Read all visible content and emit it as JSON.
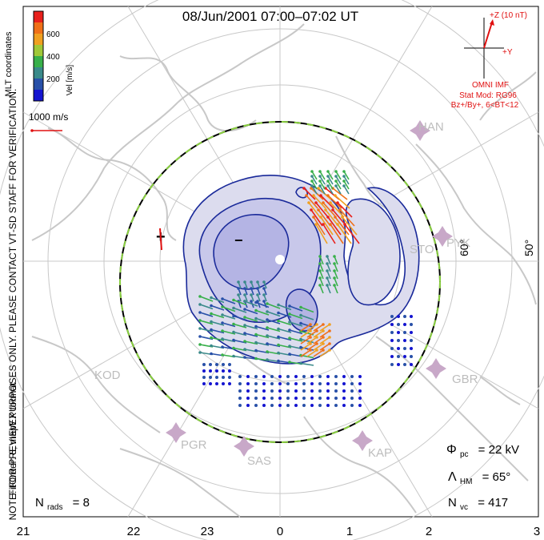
{
  "title": "08/Jun/2001 07:00–07:02 UT",
  "colorbar": {
    "label": "Vel [m/s]",
    "ticks": [
      "600",
      "400",
      "200"
    ],
    "colors": [
      "#e8201c",
      "#f07018",
      "#f0a020",
      "#a0c838",
      "#38b04a",
      "#3a8a8a",
      "#2850a8",
      "#1414d0"
    ]
  },
  "left_side_text": {
    "coordinates": "MLT coordinates",
    "notice": "NOTE: FOR PREVIEW PURPOSES ONLY. PLEASE CONTACT VT-SD STAFF FOR VERIFICATION.",
    "fit_order": "FitOrder: 8, mapEX format"
  },
  "scale_vector": {
    "label": "1000 m/s"
  },
  "imf": {
    "bz_label": "+Z (10 nT)",
    "by_label": "+Y",
    "source": "OMNI IMF",
    "model": "Stat Mod: RG96",
    "condition": "Bz+/By+, 6<BT<12",
    "color": "#e01010"
  },
  "latitude_labels": [
    "60°",
    "50°"
  ],
  "mlt_labels": [
    "21",
    "22",
    "23",
    "0",
    "1",
    "2",
    "3"
  ],
  "stations": [
    "HAN",
    "STO",
    "PYK",
    "KOD",
    "GBR",
    "PGR",
    "SAS",
    "KAP"
  ],
  "stats": {
    "phi_pc_label": "Φ",
    "phi_pc_sub": "pc",
    "phi_pc_value": "= 22 kV",
    "lambda_label": "Λ",
    "lambda_sub": "HM",
    "lambda_value": "= 65°",
    "nvc_label": "N",
    "nvc_sub": "vc",
    "nvc_value": "= 417",
    "nrads_label": "N",
    "nrads_sub": "rads",
    "nrads_value": "= 8"
  },
  "contour_signs": [
    "−",
    "+"
  ],
  "colors": {
    "coast": "#c8c8c8",
    "grid": "#c8c8c8",
    "contour": "#1a2a9a",
    "convection_fill": "#d8d8ec",
    "convection_fill_dark": "#b4b4e4",
    "hmb_dash": "#8ad040"
  }
}
